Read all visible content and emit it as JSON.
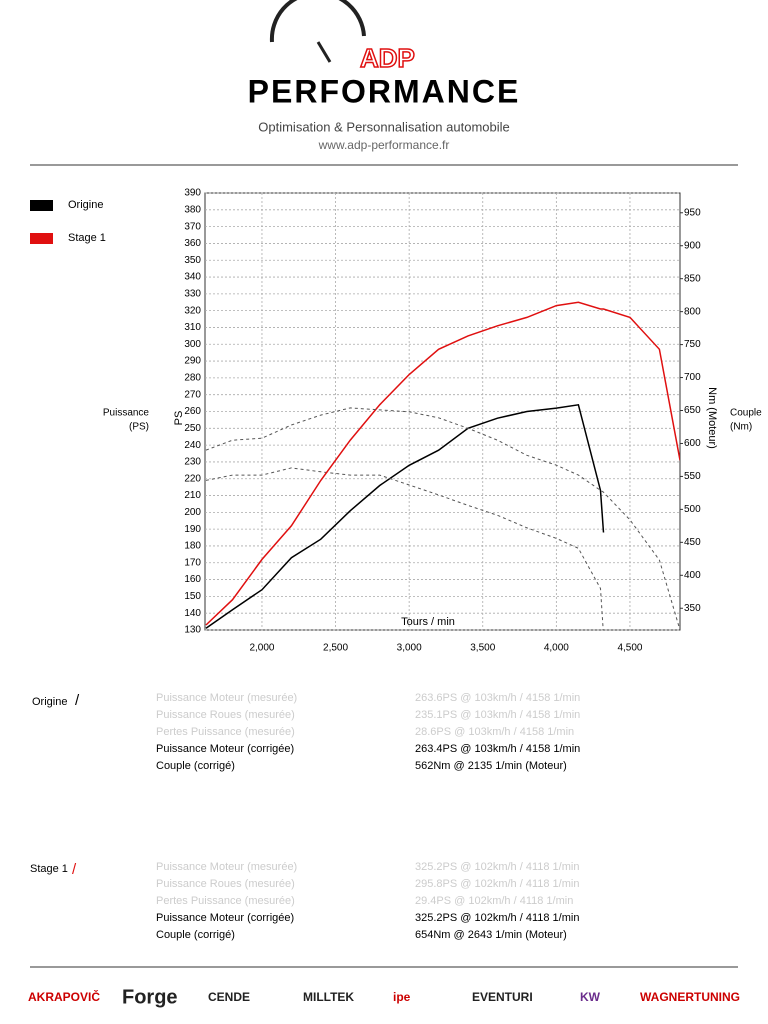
{
  "header": {
    "brand_top": "ADP",
    "brand": "PERFORMANCE",
    "subtitle": "Optimisation & Personnalisation automobile",
    "url": "www.adp-performance.fr"
  },
  "chart_data": {
    "type": "line",
    "x_label": "Tours / min",
    "y_label": "PS",
    "y_label_outer": [
      "Puissance",
      "(PS)"
    ],
    "y2_label": "Nm (Moteur)",
    "y2_label_outer": [
      "Couple",
      "(Nm)"
    ],
    "x": [
      1620,
      1800,
      2000,
      2200,
      2400,
      2600,
      2800,
      3000,
      3200,
      3400,
      3600,
      3800,
      4000,
      4150,
      4300,
      4320,
      4500,
      4700,
      4840
    ],
    "series": [
      {
        "name": "Origine",
        "color": "#000000",
        "values": [
          131,
          142,
          154,
          173,
          184,
          201,
          216,
          228,
          237,
          250,
          256,
          260,
          262,
          264,
          213,
          188,
          null,
          null,
          null
        ],
        "torque": [
          544,
          552,
          552,
          563,
          557,
          552,
          552,
          537,
          522,
          506,
          491,
          472,
          456,
          441,
          380,
          310,
          null,
          null,
          null
        ]
      },
      {
        "name": "Stage 1",
        "color": "#e01010",
        "values": [
          133,
          148,
          172,
          192,
          219,
          243,
          264,
          282,
          297,
          305,
          311,
          316,
          323,
          325,
          321,
          321,
          316,
          297,
          231
        ],
        "torque": [
          590,
          605,
          608,
          628,
          643,
          654,
          651,
          648,
          639,
          623,
          605,
          582,
          567,
          552,
          529,
          526,
          484,
          423,
          317
        ]
      }
    ],
    "torque_color": "#555555",
    "xlim": [
      1613,
      4840
    ],
    "ylim": [
      130,
      390
    ],
    "y2lim": [
      317,
      980
    ],
    "xticks": [
      {
        "value": 2000,
        "label": "2,000"
      },
      {
        "value": 2500,
        "label": "2,500"
      },
      {
        "value": 3000,
        "label": "3,000"
      },
      {
        "value": 3500,
        "label": "3,500"
      },
      {
        "value": 4000,
        "label": "4,000"
      },
      {
        "value": 4500,
        "label": "4,500"
      }
    ],
    "yticks": [
      130,
      140,
      150,
      160,
      170,
      180,
      190,
      200,
      210,
      220,
      230,
      240,
      250,
      260,
      270,
      280,
      290,
      300,
      310,
      320,
      330,
      340,
      350,
      360,
      370,
      380,
      390
    ],
    "y2ticks": [
      350,
      400,
      450,
      500,
      550,
      600,
      650,
      700,
      750,
      800,
      850,
      900,
      950
    ],
    "grid": true
  },
  "results": [
    {
      "label": "Origine",
      "lines": [
        {
          "name": "Puissance Moteur (mesurée)",
          "value": "263.6PS @ 103km/h / 4158 1/min",
          "faded": true
        },
        {
          "name": "Puissance Roues (mesurée)",
          "value": "235.1PS @ 103km/h / 4158 1/min",
          "faded": true
        },
        {
          "name": "Pertes Puissance (mesurée)",
          "value": "28.6PS @ 103km/h / 4158 1/min",
          "faded": true
        },
        {
          "name": "Puissance Moteur (corrigée)",
          "value": "263.4PS @ 103km/h / 4158 1/min",
          "faded": false
        },
        {
          "name": "Couple (corrigé)",
          "value": "562Nm @ 2135 1/min (Moteur)",
          "faded": false
        }
      ]
    },
    {
      "label": "Stage 1",
      "lines": [
        {
          "name": "Puissance Moteur (mesurée)",
          "value": "325.2PS @ 102km/h / 4118 1/min",
          "faded": true
        },
        {
          "name": "Puissance Roues (mesurée)",
          "value": "295.8PS @ 102km/h / 4118 1/min",
          "faded": true
        },
        {
          "name": "Pertes Puissance (mesurée)",
          "value": "29.4PS @ 102km/h / 4118 1/min",
          "faded": true
        },
        {
          "name": "Puissance Moteur (corrigée)",
          "value": "325.2PS @ 102km/h / 4118 1/min",
          "faded": false
        },
        {
          "name": "Couple (corrigé)",
          "value": "654Nm @ 2643 1/min (Moteur)",
          "faded": false
        }
      ]
    }
  ],
  "brands": [
    "AKRAPOVIČ",
    "Forge",
    "CENDE",
    "MILLTEK",
    "ipe",
    "EVENTURI",
    "KW",
    "WAGNERTUNING"
  ]
}
